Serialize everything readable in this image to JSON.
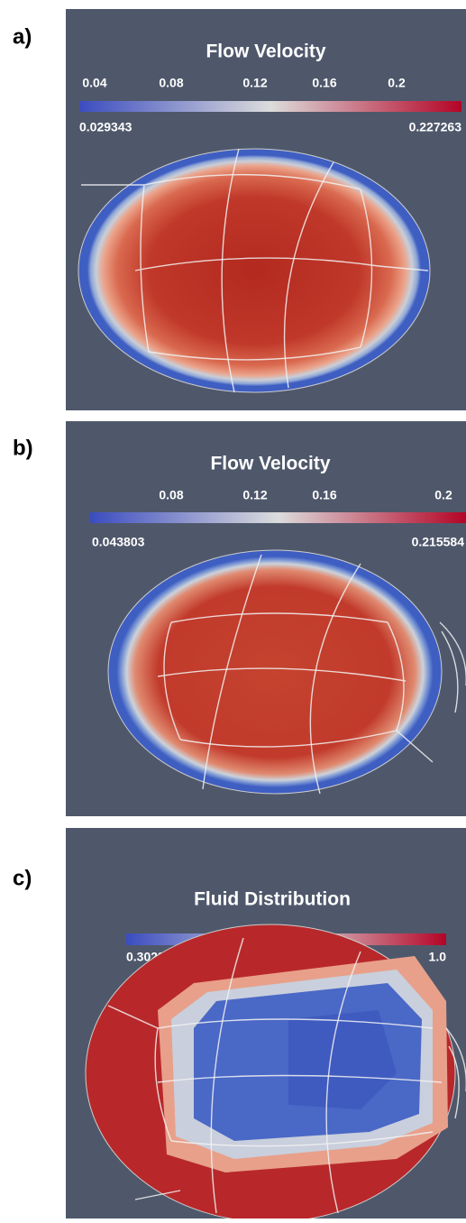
{
  "panels": [
    {
      "label": "a)",
      "title": "Flow Velocity",
      "ticks": [
        "0.04",
        "0.08",
        "0.12",
        "0.16",
        "0.2"
      ],
      "min": "0.029343",
      "max": "0.227263"
    },
    {
      "label": "b)",
      "title": "Flow Velocity",
      "ticks": [
        "0.08",
        "0.12",
        "0.16",
        "0.2"
      ],
      "min": "0.043803",
      "max": "0.215584"
    },
    {
      "label": "c)",
      "title": "Fluid Distribution",
      "min": "0.302351",
      "max": "1.0"
    }
  ]
}
